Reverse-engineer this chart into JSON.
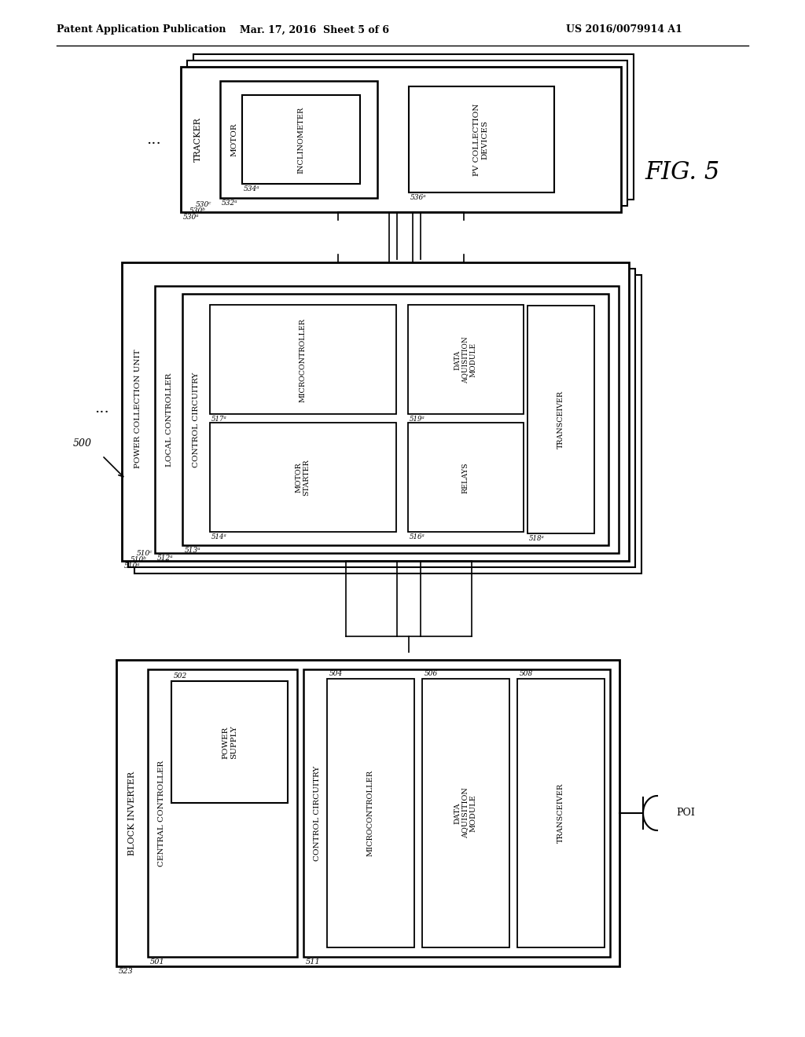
{
  "header_left": "Patent Application Publication",
  "header_mid": "Mar. 17, 2016  Sheet 5 of 6",
  "header_right": "US 2016/0079914 A1",
  "fig_label": "FIG. 5",
  "background": "#ffffff",
  "lw_outer": 2.0,
  "lw_inner": 1.5,
  "lw_innermost": 1.2
}
